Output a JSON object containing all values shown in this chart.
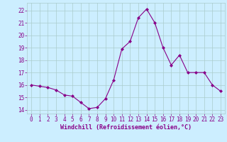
{
  "x": [
    0,
    1,
    2,
    3,
    4,
    5,
    6,
    7,
    8,
    9,
    10,
    11,
    12,
    13,
    14,
    15,
    16,
    17,
    18,
    19,
    20,
    21,
    22,
    23
  ],
  "y": [
    16.0,
    15.9,
    15.8,
    15.6,
    15.2,
    15.1,
    14.6,
    14.1,
    14.2,
    14.9,
    16.4,
    18.9,
    19.5,
    21.4,
    22.1,
    21.0,
    19.0,
    17.6,
    18.4,
    17.0,
    17.0,
    17.0,
    16.0,
    15.5
  ],
  "line_color": "#880088",
  "marker": "D",
  "marker_size": 2.0,
  "bg_color": "#cceeff",
  "grid_color": "#aacccc",
  "xlabel": "Windchill (Refroidissement éolien,°C)",
  "xlabel_color": "#880088",
  "ylim": [
    13.7,
    22.6
  ],
  "xlim": [
    -0.5,
    23.5
  ],
  "yticks": [
    14,
    15,
    16,
    17,
    18,
    19,
    20,
    21,
    22
  ],
  "xticks": [
    0,
    1,
    2,
    3,
    4,
    5,
    6,
    7,
    8,
    9,
    10,
    11,
    12,
    13,
    14,
    15,
    16,
    17,
    18,
    19,
    20,
    21,
    22,
    23
  ],
  "tick_color": "#880088",
  "tick_fontsize": 5.5,
  "xlabel_fontsize": 6.0,
  "linewidth": 0.8
}
